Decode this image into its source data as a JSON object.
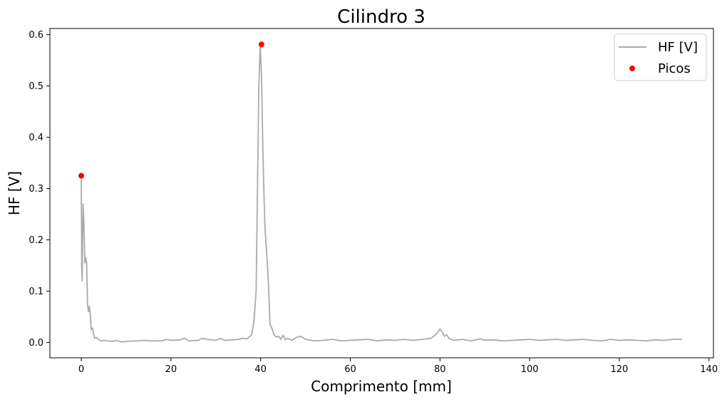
{
  "chart_data": {
    "type": "line",
    "title": "Cilindro 3",
    "xlabel": "Comprimento [mm]",
    "ylabel": "HF [V]",
    "xlim": [
      -7,
      141
    ],
    "ylim": [
      -0.03,
      0.612
    ],
    "xticks": [
      0,
      20,
      40,
      60,
      80,
      100,
      120,
      140
    ],
    "yticks": [
      0.0,
      0.1,
      0.2,
      0.3,
      0.4,
      0.5,
      0.6
    ],
    "xtick_labels": [
      "0",
      "20",
      "40",
      "60",
      "80",
      "100",
      "120",
      "140"
    ],
    "ytick_labels": [
      "0.0",
      "0.1",
      "0.2",
      "0.3",
      "0.4",
      "0.5",
      "0.6"
    ],
    "grid": false,
    "legend_position": "top-right",
    "series": [
      {
        "name": "HF [V]",
        "kind": "line",
        "color": "#aaaaaa",
        "x": [
          0,
          0.1,
          0.2,
          0.4,
          0.6,
          0.8,
          1.0,
          1.2,
          1.4,
          1.6,
          1.8,
          2.0,
          2.2,
          2.5,
          2.8,
          3.0,
          3.3,
          3.6,
          4.0,
          4.5,
          5.0,
          6.0,
          7.0,
          8.0,
          9.0,
          10.0,
          12.0,
          14.0,
          16.0,
          18.0,
          19.0,
          20.0,
          22.0,
          23.0,
          24.0,
          26.0,
          27.0,
          28.0,
          30.0,
          31.0,
          32.0,
          34.0,
          35.0,
          36.0,
          37.0,
          38.0,
          38.5,
          39.0,
          39.3,
          39.6,
          39.9,
          40.2,
          40.5,
          40.8,
          41.0,
          41.3,
          41.6,
          41.9,
          42.1,
          42.4,
          43.0,
          43.5,
          44.0,
          44.5,
          45.0,
          45.5,
          46.0,
          47.0,
          48.0,
          49.0,
          50.0,
          52.0,
          54.0,
          56.0,
          58.0,
          60.0,
          62.0,
          64.0,
          66.0,
          68.0,
          70.0,
          72.0,
          74.0,
          76.0,
          78.0,
          79.0,
          79.5,
          80.0,
          80.5,
          81.0,
          81.5,
          82.0,
          83.0,
          85.0,
          87.0,
          89.0,
          90.0,
          92.0,
          94.0,
          96.0,
          98.0,
          100.0,
          102.0,
          104.0,
          106.0,
          108.0,
          110.0,
          112.0,
          114.0,
          116.0,
          118.0,
          120.0,
          122.0,
          124.0,
          126.0,
          128.0,
          130.0,
          132.0,
          134.0
        ],
        "y": [
          0.32,
          0.15,
          0.12,
          0.27,
          0.23,
          0.155,
          0.165,
          0.155,
          0.075,
          0.06,
          0.07,
          0.055,
          0.025,
          0.028,
          0.015,
          0.008,
          0.01,
          0.008,
          0.005,
          0.003,
          0.004,
          0.003,
          0.002,
          0.004,
          0.001,
          0.002,
          0.003,
          0.004,
          0.003,
          0.003,
          0.006,
          0.004,
          0.005,
          0.008,
          0.003,
          0.004,
          0.008,
          0.006,
          0.004,
          0.008,
          0.004,
          0.005,
          0.006,
          0.008,
          0.007,
          0.015,
          0.04,
          0.1,
          0.3,
          0.5,
          0.58,
          0.52,
          0.38,
          0.27,
          0.22,
          0.18,
          0.14,
          0.08,
          0.035,
          0.03,
          0.015,
          0.01,
          0.012,
          0.006,
          0.014,
          0.005,
          0.008,
          0.004,
          0.01,
          0.012,
          0.006,
          0.003,
          0.004,
          0.006,
          0.003,
          0.004,
          0.005,
          0.006,
          0.003,
          0.005,
          0.004,
          0.006,
          0.004,
          0.006,
          0.008,
          0.015,
          0.02,
          0.026,
          0.02,
          0.012,
          0.015,
          0.008,
          0.004,
          0.006,
          0.003,
          0.007,
          0.004,
          0.005,
          0.003,
          0.004,
          0.005,
          0.006,
          0.004,
          0.005,
          0.006,
          0.004,
          0.005,
          0.006,
          0.004,
          0.003,
          0.006,
          0.004,
          0.005,
          0.004,
          0.003,
          0.005,
          0.004,
          0.006,
          0.006
        ]
      },
      {
        "name": "Picos",
        "kind": "scatter",
        "color": "#ff0000",
        "x": [
          0,
          40.2
        ],
        "y": [
          0.325,
          0.581
        ]
      }
    ]
  }
}
